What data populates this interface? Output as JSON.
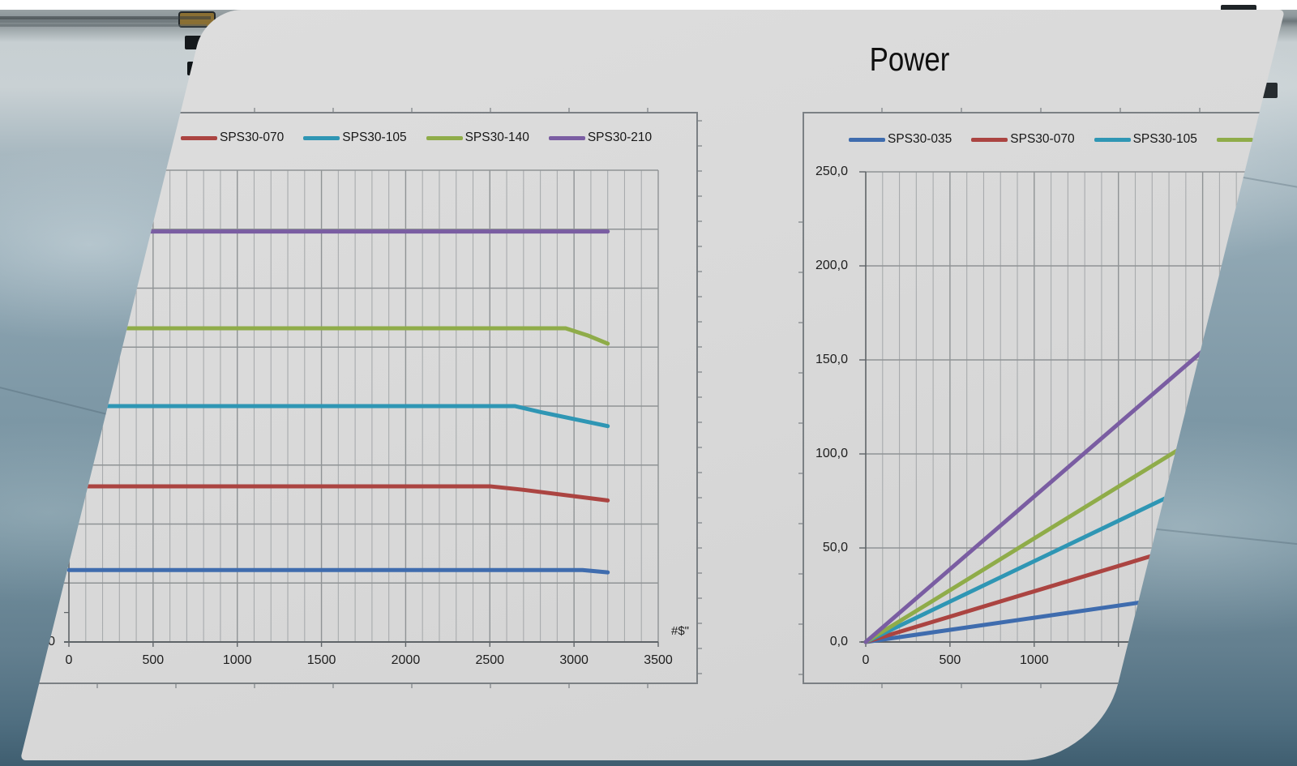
{
  "slide": {
    "background": "#d9d9d9",
    "shape": "skewed-parallelogram"
  },
  "photo_colors": {
    "ceiling_light": "#c9d1d4",
    "ceiling_band_dark": "#6e777b",
    "floor_mid": "#7f99a7",
    "floor_bottom": "#3f5e70",
    "panel_gold": "#8a6f33",
    "panel_dark": "#15191c"
  },
  "power_chart_title": "Power",
  "torque_axis_end_label": "#$\"",
  "chart_data": [
    {
      "id": "torque",
      "type": "line",
      "title": "",
      "xlim": [
        0,
        3500
      ],
      "ylim": [
        0,
        200
      ],
      "x_tick_labels": [
        "0",
        "500",
        "1000",
        "1500",
        "2000",
        "2500",
        "3000",
        "3500"
      ],
      "x_tick_values": [
        0,
        500,
        1000,
        1500,
        2000,
        2500,
        3000,
        3500
      ],
      "y_tick_labels": [
        "0"
      ],
      "y_tick_values": [
        0
      ],
      "x_axis_end_label": "#$\"",
      "grid": {
        "x_minor_step": 100,
        "x_major_step": 500,
        "y_major_step": 25,
        "y_minor_labels_hidden": true
      },
      "legend_position": "top",
      "note": "left edge of chart clipped by slanted slide border; y axis unlabeled except 0",
      "legend": [
        {
          "label": "SPS30-070",
          "color": "#ab4441"
        },
        {
          "label": "SPS30-105",
          "color": "#2f96b4"
        },
        {
          "label": "SPS30-140",
          "color": "#8fac49"
        },
        {
          "label": "SPS30-210",
          "color": "#7a5da2"
        }
      ],
      "series": [
        {
          "name": "SPS30-035",
          "color": "#3f6cae",
          "legend_visible": false,
          "points": [
            [
              0,
              30.5
            ],
            [
              3050,
              30.5
            ],
            [
              3200,
              29.5
            ]
          ]
        },
        {
          "name": "SPS30-070",
          "color": "#ab4441",
          "legend_visible": true,
          "points": [
            [
              0,
              66
            ],
            [
              2500,
              66
            ],
            [
              2700,
              64.5
            ],
            [
              3200,
              60
            ]
          ]
        },
        {
          "name": "SPS30-105",
          "color": "#2f96b4",
          "legend_visible": true,
          "points": [
            [
              0,
              100
            ],
            [
              2650,
              100
            ],
            [
              2800,
              97.5
            ],
            [
              3200,
              91.5
            ]
          ]
        },
        {
          "name": "SPS30-140",
          "color": "#8fac49",
          "legend_visible": true,
          "points": [
            [
              0,
              133
            ],
            [
              2950,
              133
            ],
            [
              3080,
              130
            ],
            [
              3200,
              126.5
            ]
          ]
        },
        {
          "name": "SPS30-210",
          "color": "#7a5da2",
          "legend_visible": true,
          "points": [
            [
              0,
              174
            ],
            [
              3200,
              174
            ]
          ]
        }
      ]
    },
    {
      "id": "power",
      "type": "line",
      "title": "Power",
      "xlim": [
        0,
        2560
      ],
      "ylim": [
        0,
        250
      ],
      "x_tick_labels": [
        "0",
        "500",
        "1000"
      ],
      "x_tick_values": [
        0,
        500,
        1000
      ],
      "y_tick_labels": [
        "250,0",
        "200,0",
        "150,0",
        "100,0",
        "50,0",
        "0,0"
      ],
      "y_tick_values": [
        250,
        200,
        150,
        100,
        50,
        0
      ],
      "grid": {
        "x_minor_step": 100,
        "x_major_step": 500,
        "y_major_step": 50
      },
      "legend_position": "top",
      "note": "right side of chart clipped by slanted slide border; slopes approx W per 1000 rpm: 13/27/43/55/77",
      "legend": [
        {
          "label": "SPS30-035",
          "color": "#3f6cae"
        },
        {
          "label": "SPS30-070",
          "color": "#ab4441"
        },
        {
          "label": "SPS30-105",
          "color": "#2f96b4"
        },
        {
          "label": "",
          "color": "#8fac49"
        }
      ],
      "series": [
        {
          "name": "SPS30-035",
          "color": "#3f6cae",
          "points": [
            [
              0,
              0
            ],
            [
              2560,
              33
            ]
          ]
        },
        {
          "name": "SPS30-070",
          "color": "#ab4441",
          "points": [
            [
              0,
              0
            ],
            [
              2560,
              69
            ]
          ]
        },
        {
          "name": "SPS30-105",
          "color": "#2f96b4",
          "points": [
            [
              0,
              0
            ],
            [
              2560,
              110
            ]
          ]
        },
        {
          "name": "SPS30-140",
          "color": "#8fac49",
          "points": [
            [
              0,
              0
            ],
            [
              2560,
              141
            ]
          ]
        },
        {
          "name": "SPS30-210",
          "color": "#7a5da2",
          "points": [
            [
              0,
              0
            ],
            [
              2560,
              198
            ]
          ]
        }
      ]
    }
  ]
}
